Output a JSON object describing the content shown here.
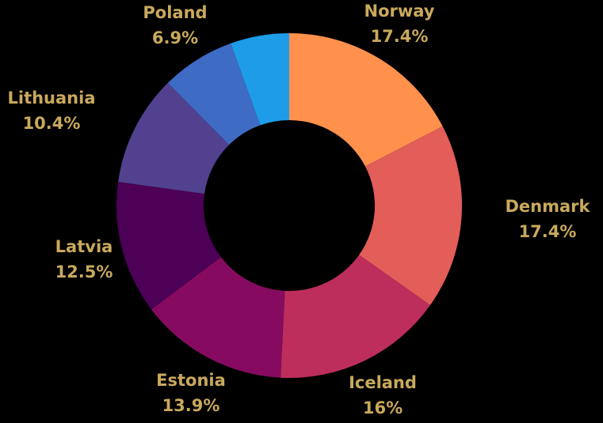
{
  "chart_data": {
    "type": "pie",
    "variant": "donut",
    "title": "",
    "slices": [
      {
        "label": "Norway",
        "value": 17.4,
        "value_label": "17.4%",
        "color": "#FF914D"
      },
      {
        "label": "Denmark",
        "value": 17.4,
        "value_label": "17.4%",
        "color": "#E35D59"
      },
      {
        "label": "Iceland",
        "value": 16.0,
        "value_label": "16%",
        "color": "#BD2E5C"
      },
      {
        "label": "Estonia",
        "value": 13.9,
        "value_label": "13.9%",
        "color": "#860B60"
      },
      {
        "label": "Latvia",
        "value": 12.5,
        "value_label": "12.5%",
        "color": "#4C0056"
      },
      {
        "label": "Lithuania",
        "value": 10.4,
        "value_label": "10.4%",
        "color": "#51418E"
      },
      {
        "label": "Poland",
        "value": 6.9,
        "value_label": "6.9%",
        "color": "#3E6BC4"
      },
      {
        "label": "",
        "value": 5.5,
        "value_label": "",
        "color": "#1E9CE8"
      }
    ],
    "start_angle": "12 o'clock",
    "direction": "clockwise",
    "background": "#000000",
    "label_color": "#C9A95C",
    "legend": "none"
  }
}
